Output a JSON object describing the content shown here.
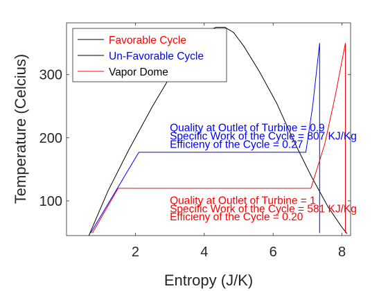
{
  "chart_data": {
    "type": "line",
    "xlabel": "Entropy (J/K)",
    "ylabel": "Temperature (Celcius)",
    "xlim": [
      0.0,
      8.25
    ],
    "ylim": [
      45,
      382
    ],
    "xticks": [
      2,
      4,
      6,
      8
    ],
    "yticks": [
      100,
      200,
      300
    ],
    "grid": false,
    "legend": {
      "placement": "top-left",
      "entries": [
        {
          "label": "Favorable Cycle",
          "text_color": "#ff0000",
          "line_color": "#000000"
        },
        {
          "label": "Un-Favorable Cycle",
          "text_color": "#0000ff",
          "line_color": "#000000"
        },
        {
          "label": "Vapor Dome",
          "text_color": "#000000",
          "line_color": "#ff0000"
        }
      ]
    },
    "series": [
      {
        "role": "vapor-dome",
        "color": "#000000",
        "x": [
          0.65,
          1.2,
          1.8,
          2.5,
          3.1,
          3.6,
          4.0,
          4.35,
          4.6,
          4.85,
          5.15,
          5.6,
          6.1,
          6.6,
          7.1,
          7.6,
          8.0,
          8.15
        ],
        "y": [
          45,
          115,
          180,
          250,
          305,
          345,
          368,
          375,
          375,
          367,
          345,
          305,
          255,
          195,
          140,
          90,
          58,
          48
        ]
      },
      {
        "role": "unfavorable-cycle",
        "color": "#0000ff",
        "x": [
          0.7,
          2.1,
          6.95,
          7.15,
          7.35,
          7.35,
          7.35
        ],
        "y": [
          49,
          177,
          177,
          250,
          350,
          100,
          49
        ]
      },
      {
        "role": "favorable-cycle",
        "color": "#ff0000",
        "x": [
          0.75,
          1.5,
          7.1,
          7.5,
          7.8,
          8.1,
          8.1,
          8.1
        ],
        "y": [
          49,
          120,
          120,
          190,
          265,
          350,
          100,
          49
        ]
      }
    ],
    "annotations": [
      {
        "text": "Quality at Outlet of Turbine = 0.9",
        "color": "#0000ff",
        "x": 3.0,
        "y": 210
      },
      {
        "text": "Specific Work of the Cycle   = 807 KJ/Kg",
        "color": "#0000ff",
        "x": 3.0,
        "y": 197
      },
      {
        "text": "Efficieny of the Cycle          = 0.27",
        "color": "#0000ff",
        "x": 3.0,
        "y": 184
      },
      {
        "text": "Quality at Outlet of Turbine = 1",
        "color": "#ff0000",
        "x": 3.0,
        "y": 95
      },
      {
        "text": "Specific Work of the Cycle   = 581 KJ/Kg",
        "color": "#ff0000",
        "x": 3.0,
        "y": 82
      },
      {
        "text": "Efficieny of the Cycle          = 0.20",
        "color": "#ff0000",
        "x": 3.0,
        "y": 69
      }
    ]
  }
}
